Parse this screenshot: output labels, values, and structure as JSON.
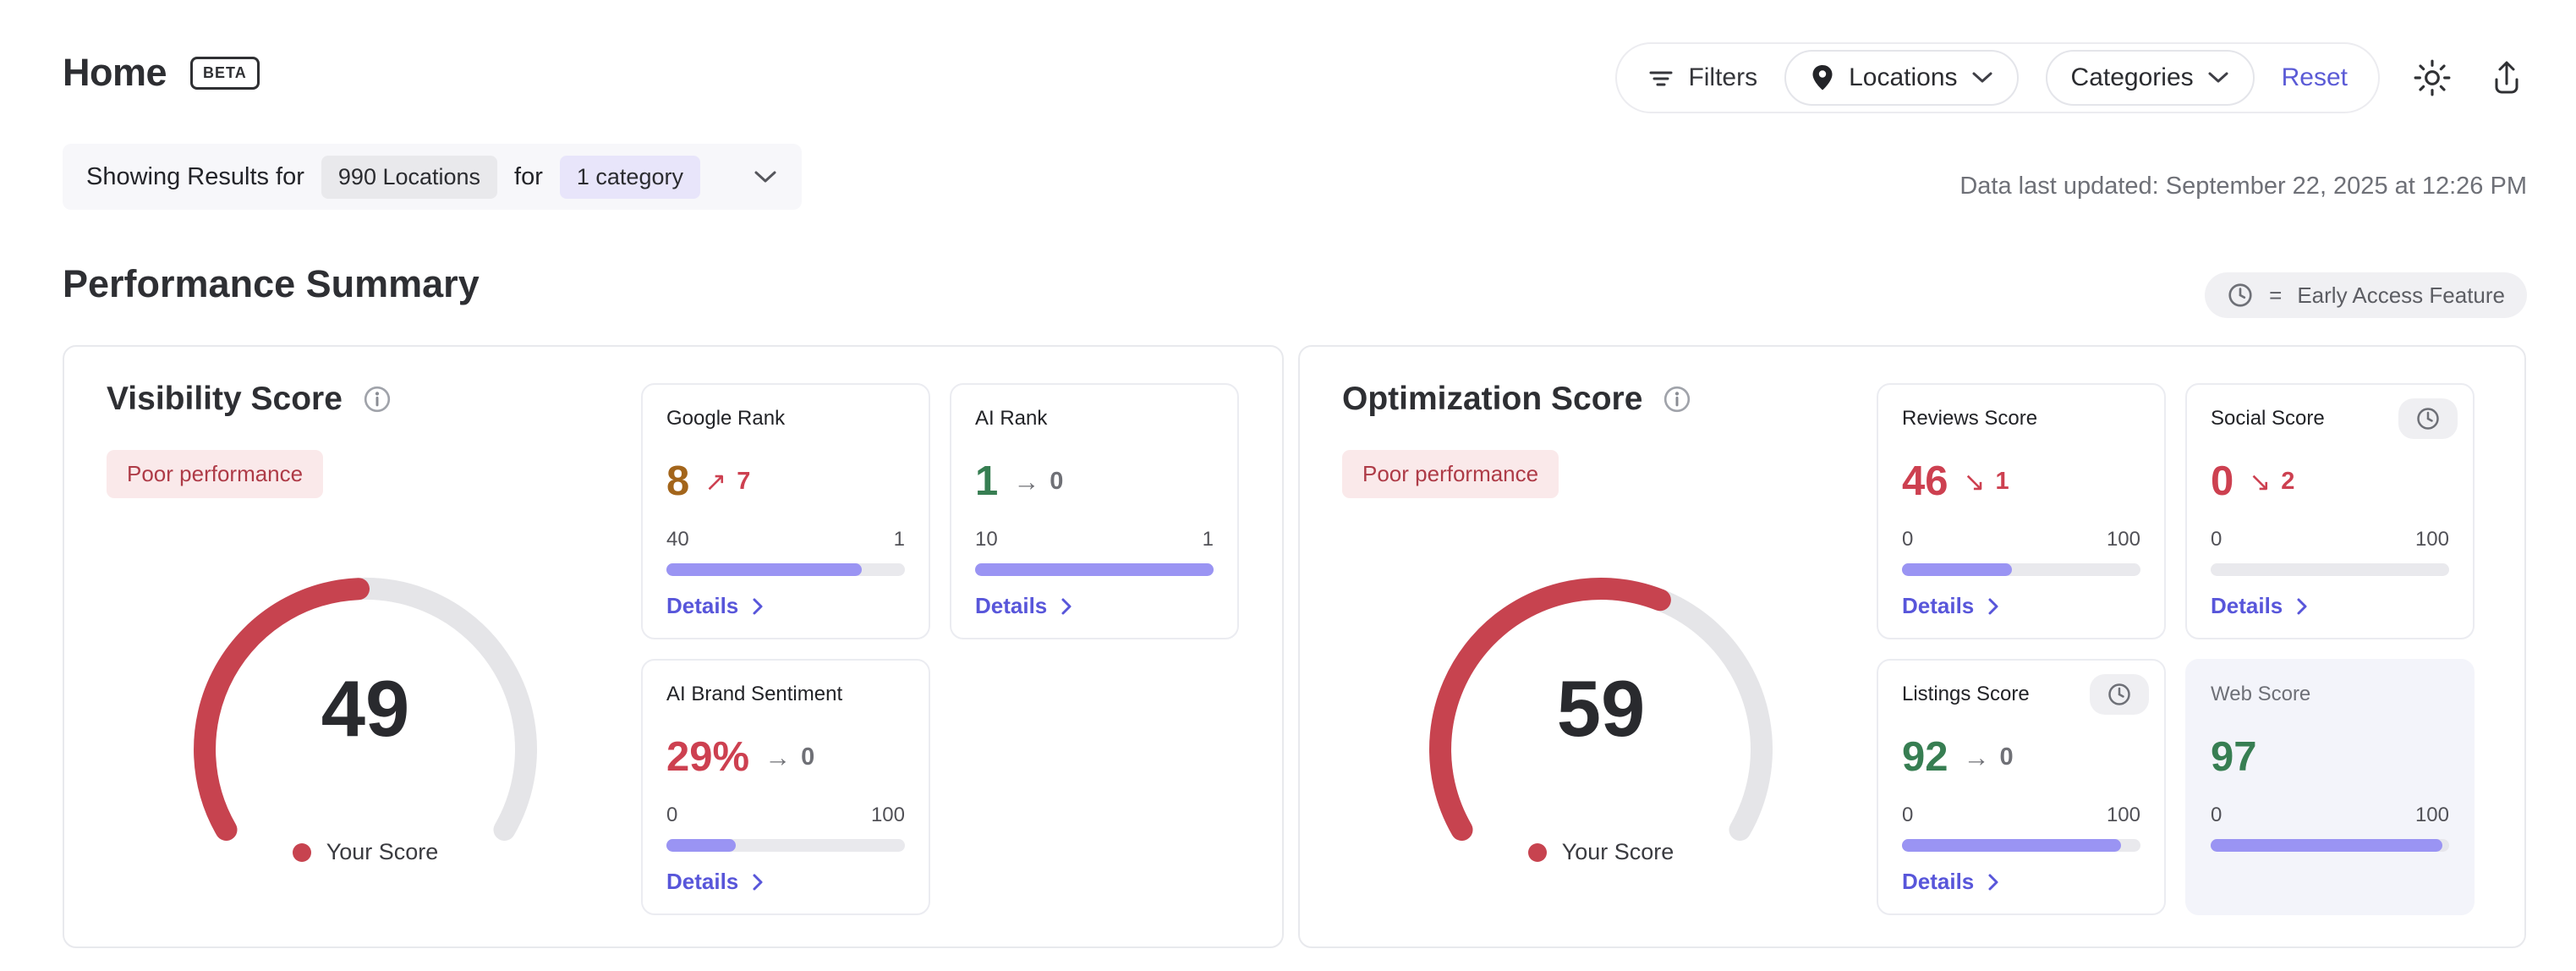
{
  "header": {
    "title": "Home",
    "beta_badge": "BETA",
    "filters_label": "Filters",
    "locations_label": "Locations",
    "categories_label": "Categories",
    "reset_label": "Reset"
  },
  "results_bar": {
    "prefix": "Showing Results for",
    "locations_pill": "990 Locations",
    "connector": "for",
    "category_pill": "1 category"
  },
  "last_updated": "Data last updated: September 22, 2025 at 12:26 PM",
  "section": {
    "title": "Performance Summary",
    "early_access_equals": "=",
    "early_access_label": "Early Access Feature"
  },
  "colors": {
    "accent_indigo": "#5856DA",
    "bar_fill": "#9A94F3",
    "bar_track": "#E9E9ED",
    "gauge_fill": "#C7434F",
    "gauge_track": "#E5E5E8",
    "badge_bg": "#FAE9EA",
    "badge_text": "#AE3B47",
    "value_red": "#CD4050",
    "value_green": "#377E52",
    "value_amber": "#A3651B",
    "trend_gray": "#6F7076"
  },
  "cards": [
    {
      "title": "Visibility Score",
      "status_badge": "Poor performance",
      "score": 49,
      "legend_label": "Your Score",
      "metrics": [
        {
          "label": "Google Rank",
          "value": "8",
          "value_color": "#A3651B",
          "trend_glyph": "↗",
          "trend_value": "7",
          "trend_color": "#CD4050",
          "range_left": "40",
          "range_right": "1",
          "bar_percent": 82,
          "details_label": "Details"
        },
        {
          "label": "AI Rank",
          "value": "1",
          "value_color": "#377E52",
          "trend_glyph": "→",
          "trend_value": "0",
          "trend_color": "#6F7076",
          "range_left": "10",
          "range_right": "1",
          "bar_percent": 100,
          "details_label": "Details"
        },
        {
          "label": "AI Brand Sentiment",
          "value": "29%",
          "value_color": "#CD4050",
          "trend_glyph": "→",
          "trend_value": "0",
          "trend_color": "#6F7076",
          "range_left": "0",
          "range_right": "100",
          "bar_percent": 29,
          "details_label": "Details"
        }
      ]
    },
    {
      "title": "Optimization Score",
      "status_badge": "Poor performance",
      "score": 59,
      "legend_label": "Your Score",
      "metrics": [
        {
          "label": "Reviews Score",
          "value": "46",
          "value_color": "#CD4050",
          "trend_glyph": "↘",
          "trend_value": "1",
          "trend_color": "#CD4050",
          "range_left": "0",
          "range_right": "100",
          "bar_percent": 46,
          "details_label": "Details"
        },
        {
          "label": "Social Score",
          "value": "0",
          "value_color": "#CD4050",
          "trend_glyph": "↘",
          "trend_value": "2",
          "trend_color": "#CD4050",
          "range_left": "0",
          "range_right": "100",
          "bar_percent": 0,
          "details_label": "Details",
          "early_access": true
        },
        {
          "label": "Listings Score",
          "value": "92",
          "value_color": "#377E52",
          "trend_glyph": "→",
          "trend_value": "0",
          "trend_color": "#6F7076",
          "range_left": "0",
          "range_right": "100",
          "bar_percent": 92,
          "details_label": "Details",
          "early_access": true
        },
        {
          "label": "Web Score",
          "value": "97",
          "value_color": "#377E52",
          "range_left": "0",
          "range_right": "100",
          "bar_percent": 97,
          "highlight": true
        }
      ]
    }
  ]
}
